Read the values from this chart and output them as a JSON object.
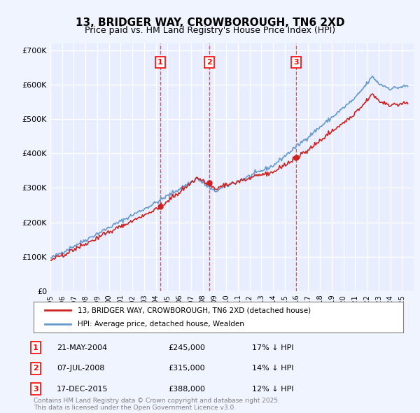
{
  "title": "13, BRIDGER WAY, CROWBOROUGH, TN6 2XD",
  "subtitle": "Price paid vs. HM Land Registry's House Price Index (HPI)",
  "ylim": [
    0,
    720000
  ],
  "yticks": [
    0,
    100000,
    200000,
    300000,
    400000,
    500000,
    600000,
    700000
  ],
  "ytick_labels": [
    "£0",
    "£100K",
    "£200K",
    "£300K",
    "£400K",
    "£500K",
    "£600K",
    "£700K"
  ],
  "background_color": "#f0f4ff",
  "plot_bg_color": "#e8eeff",
  "grid_color": "#ffffff",
  "hpi_line_color": "#6699cc",
  "price_line_color": "#cc2222",
  "sale1_price": 245000,
  "sale1_label": "1",
  "sale2_price": 315000,
  "sale2_label": "2",
  "sale3_price": 388000,
  "sale3_label": "3",
  "legend_label_price": "13, BRIDGER WAY, CROWBOROUGH, TN6 2XD (detached house)",
  "legend_label_hpi": "HPI: Average price, detached house, Wealden",
  "footer": "Contains HM Land Registry data © Crown copyright and database right 2025.\nThis data is licensed under the Open Government Licence v3.0.",
  "x_start_year": 1995,
  "x_end_year": 2026
}
